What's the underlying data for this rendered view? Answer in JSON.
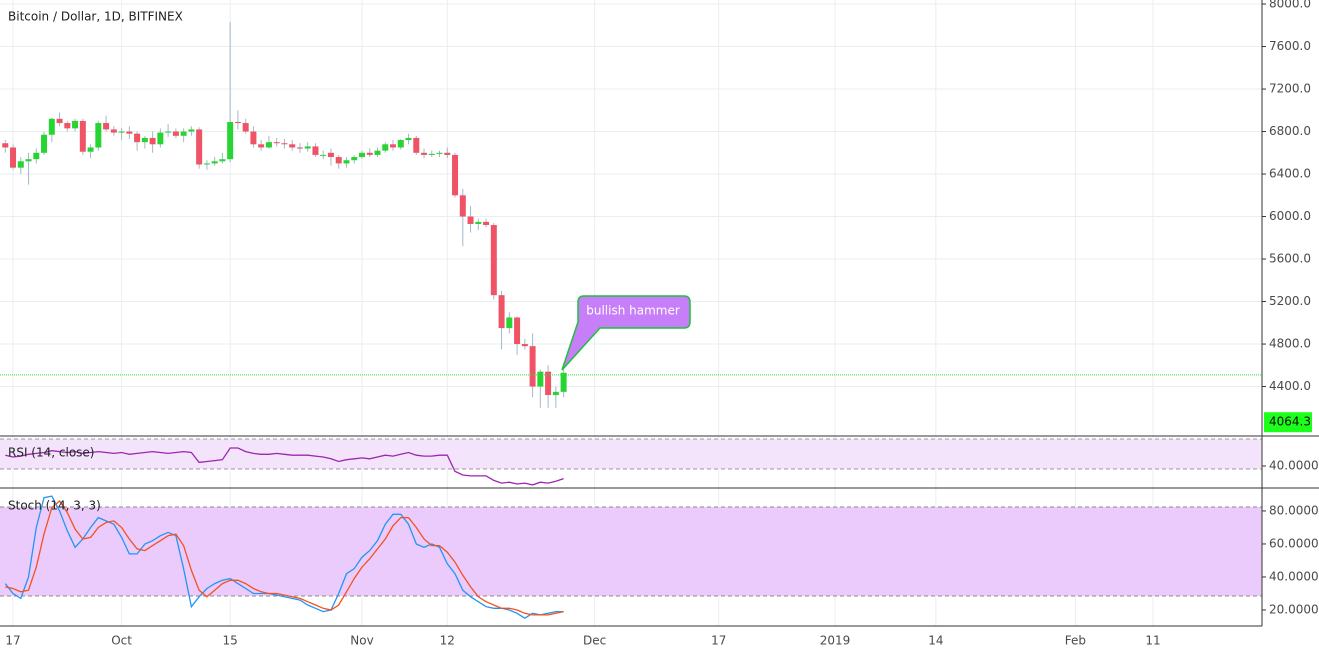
{
  "chart_data": [
    {
      "type": "candlestick",
      "title": "Bitcoin / Dollar, 1D, BITFINEX",
      "x": [
        0,
        1,
        2,
        3,
        4,
        5,
        6,
        7,
        8,
        9,
        10,
        11,
        12,
        13,
        14,
        15,
        16,
        17,
        18,
        19,
        20,
        21,
        22,
        23,
        24,
        25,
        26,
        27,
        28,
        29,
        30,
        31,
        32,
        33,
        34,
        35,
        36,
        37,
        38,
        39,
        40,
        41,
        42,
        43,
        44,
        45,
        46,
        47,
        48,
        49,
        50,
        51,
        52,
        53,
        54,
        55,
        56,
        57,
        58,
        59,
        60,
        61,
        62,
        63,
        64,
        65,
        66,
        67,
        68,
        69,
        70,
        71,
        72
      ],
      "ohlc": [
        [
          6690,
          6720,
          6600,
          6650
        ],
        [
          6650,
          6680,
          6440,
          6460
        ],
        [
          6460,
          6560,
          6400,
          6520
        ],
        [
          6520,
          6600,
          6300,
          6540
        ],
        [
          6540,
          6640,
          6500,
          6600
        ],
        [
          6600,
          6800,
          6580,
          6770
        ],
        [
          6770,
          6930,
          6700,
          6920
        ],
        [
          6920,
          6980,
          6850,
          6880
        ],
        [
          6880,
          6900,
          6800,
          6830
        ],
        [
          6830,
          6920,
          6800,
          6900
        ],
        [
          6900,
          6920,
          6580,
          6610
        ],
        [
          6610,
          6680,
          6550,
          6650
        ],
        [
          6650,
          6900,
          6620,
          6880
        ],
        [
          6880,
          6950,
          6800,
          6820
        ],
        [
          6820,
          6850,
          6760,
          6790
        ],
        [
          6790,
          6830,
          6720,
          6800
        ],
        [
          6800,
          6850,
          6730,
          6780
        ],
        [
          6780,
          6800,
          6620,
          6700
        ],
        [
          6700,
          6760,
          6640,
          6740
        ],
        [
          6740,
          6800,
          6600,
          6680
        ],
        [
          6680,
          6830,
          6650,
          6790
        ],
        [
          6790,
          6870,
          6750,
          6800
        ],
        [
          6800,
          6830,
          6740,
          6760
        ],
        [
          6760,
          6830,
          6700,
          6800
        ],
        [
          6800,
          6850,
          6760,
          6820
        ],
        [
          6820,
          6840,
          6450,
          6490
        ],
        [
          6490,
          6530,
          6440,
          6500
        ],
        [
          6500,
          6560,
          6480,
          6520
        ],
        [
          6520,
          6600,
          6500,
          6540
        ],
        [
          6540,
          7830,
          6510,
          6890
        ],
        [
          6890,
          7000,
          6820,
          6880
        ],
        [
          6880,
          6920,
          6780,
          6800
        ],
        [
          6800,
          6850,
          6650,
          6680
        ],
        [
          6680,
          6720,
          6620,
          6650
        ],
        [
          6650,
          6760,
          6640,
          6700
        ],
        [
          6700,
          6740,
          6660,
          6690
        ],
        [
          6690,
          6730,
          6640,
          6680
        ],
        [
          6680,
          6720,
          6620,
          6650
        ],
        [
          6650,
          6690,
          6600,
          6640
        ],
        [
          6640,
          6700,
          6610,
          6660
        ],
        [
          6660,
          6690,
          6560,
          6580
        ],
        [
          6580,
          6620,
          6540,
          6580
        ],
        [
          6600,
          6640,
          6480,
          6560
        ],
        [
          6560,
          6580,
          6450,
          6500
        ],
        [
          6500,
          6560,
          6460,
          6530
        ],
        [
          6530,
          6580,
          6500,
          6560
        ],
        [
          6560,
          6620,
          6540,
          6600
        ],
        [
          6600,
          6640,
          6560,
          6580
        ],
        [
          6580,
          6650,
          6560,
          6620
        ],
        [
          6620,
          6700,
          6600,
          6680
        ],
        [
          6680,
          6720,
          6620,
          6650
        ],
        [
          6650,
          6730,
          6630,
          6720
        ],
        [
          6720,
          6780,
          6680,
          6740
        ],
        [
          6740,
          6760,
          6580,
          6600
        ],
        [
          6600,
          6640,
          6550,
          6580
        ],
        [
          6580,
          6620,
          6560,
          6590
        ],
        [
          6590,
          6620,
          6560,
          6600
        ],
        [
          6600,
          6650,
          6550,
          6580
        ],
        [
          6580,
          6600,
          6180,
          6200
        ],
        [
          6200,
          6260,
          5720,
          6000
        ],
        [
          6000,
          6100,
          5850,
          5930
        ],
        [
          5930,
          5980,
          5870,
          5950
        ],
        [
          5950,
          5980,
          5900,
          5920
        ],
        [
          5920,
          5940,
          5220,
          5260
        ],
        [
          5260,
          5300,
          4750,
          4950
        ],
        [
          4950,
          5100,
          4900,
          5050
        ],
        [
          5050,
          5060,
          4700,
          4800
        ],
        [
          4800,
          4850,
          4750,
          4780
        ],
        [
          4780,
          4900,
          4300,
          4400
        ],
        [
          4400,
          4560,
          4200,
          4540
        ],
        [
          4540,
          4600,
          4200,
          4320
        ],
        [
          4320,
          4400,
          4200,
          4350
        ],
        [
          4350,
          4560,
          4300,
          4530
        ]
      ],
      "up_color": "#26d531",
      "down_color": "#ef5366",
      "wick_color": "#9fb9cc",
      "xlim": [
        -0.68,
        162.06
      ],
      "xticks": [
        {
          "value": 1,
          "label": "17"
        },
        {
          "value": 15,
          "label": "Oct"
        },
        {
          "value": 29,
          "label": "15"
        },
        {
          "value": 46,
          "label": "Nov"
        },
        {
          "value": 57,
          "label": "12"
        },
        {
          "value": 76,
          "label": "Dec"
        },
        {
          "value": 92,
          "label": "17"
        },
        {
          "value": 107,
          "label": "2019"
        },
        {
          "value": 120,
          "label": "14"
        },
        {
          "value": 138,
          "label": "Feb"
        },
        {
          "value": 148,
          "label": "11"
        }
      ],
      "ylim": [
        3944,
        8038
      ],
      "yticks": [
        {
          "value": 8000,
          "label": "8000.0"
        },
        {
          "value": 7600,
          "label": "7600.0"
        },
        {
          "value": 7200,
          "label": "7200.0"
        },
        {
          "value": 6800,
          "label": "6800.0"
        },
        {
          "value": 6400,
          "label": "6400.0"
        },
        {
          "value": 6000,
          "label": "6000.0"
        },
        {
          "value": 5600,
          "label": "5600.0"
        },
        {
          "value": 5200,
          "label": "5200.0"
        },
        {
          "value": 4800,
          "label": "4800.0"
        },
        {
          "value": 4400,
          "label": "4400.0"
        }
      ],
      "grid": true,
      "hline": 4510,
      "hline_color": "#33dd33",
      "last_price": 4064.3,
      "last_price_color": "#1bff1b",
      "annotation": "bullish hammer"
    },
    {
      "type": "line",
      "title": "RSI (14, close)",
      "series": [
        {
          "color": "#9c27b0",
          "values": [
            52,
            50,
            51,
            53,
            54,
            55,
            57,
            56,
            55,
            56,
            54,
            55,
            56,
            55,
            54,
            55,
            53,
            54,
            55,
            56,
            55,
            54,
            55,
            56,
            55,
            44,
            45,
            46,
            47,
            60,
            60,
            56,
            54,
            53,
            53,
            54,
            53,
            52,
            52,
            52,
            51,
            50,
            48,
            45,
            47,
            48,
            49,
            48,
            50,
            52,
            51,
            53,
            55,
            52,
            51,
            51,
            52,
            52,
            34,
            30,
            29,
            29,
            29,
            24,
            21,
            22,
            20,
            21,
            19,
            22,
            21,
            23,
            26
          ]
        }
      ],
      "ylim": [
        16.7,
        72.2
      ],
      "yticks": [
        {
          "value": 40,
          "label": "40.0000"
        }
      ]
    },
    {
      "type": "line",
      "title": "Stoch (14, 3, 3)",
      "series": [
        {
          "color": "#2196f3",
          "values": [
            36,
            30,
            27,
            40,
            70,
            88,
            89,
            80,
            68,
            58,
            63,
            70,
            76,
            74,
            72,
            64,
            54,
            54,
            60,
            62,
            65,
            67,
            65,
            45,
            22,
            28,
            33,
            36,
            38,
            39,
            36,
            33,
            30,
            30,
            30,
            29,
            28,
            27,
            26,
            23,
            21,
            19,
            20,
            30,
            42,
            45,
            52,
            56,
            62,
            72,
            78,
            78,
            72,
            60,
            58,
            60,
            58,
            48,
            42,
            32,
            28,
            25,
            22,
            21,
            21,
            20,
            18,
            15,
            18,
            17,
            18,
            19,
            19
          ]
        },
        {
          "color": "#f4511e",
          "values": [
            34,
            33,
            31,
            32,
            46,
            66,
            82,
            86,
            79,
            69,
            63,
            64,
            70,
            73,
            74,
            70,
            63,
            57,
            56,
            59,
            62,
            65,
            66,
            59,
            44,
            32,
            28,
            32,
            36,
            38,
            38,
            36,
            33,
            31,
            30,
            30,
            29,
            28,
            27,
            25,
            23,
            21,
            20,
            23,
            31,
            39,
            46,
            51,
            57,
            63,
            71,
            76,
            76,
            70,
            63,
            59,
            59,
            55,
            49,
            41,
            34,
            28,
            25,
            23,
            21,
            21,
            20,
            18,
            17,
            17,
            17,
            18,
            19
          ]
        }
      ],
      "ylim": [
        10.9,
        93.3
      ],
      "yticks": [
        {
          "value": 80,
          "label": "80.0000"
        },
        {
          "value": 60,
          "label": "60.0000"
        },
        {
          "value": 40,
          "label": "40.0000"
        },
        {
          "value": 20,
          "label": "20.0000"
        }
      ]
    }
  ]
}
